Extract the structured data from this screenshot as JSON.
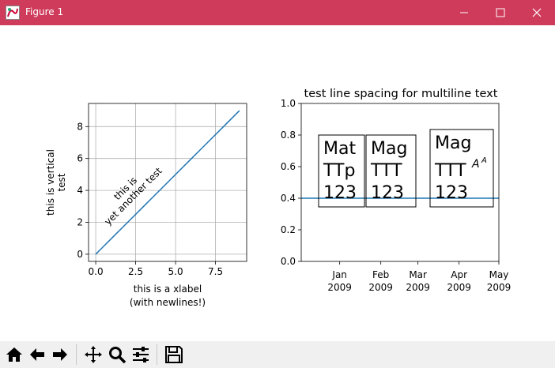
{
  "window": {
    "title": "Figure 1"
  },
  "left_axes": {
    "ylabel_lines": [
      "this is vertical",
      "test"
    ],
    "xlabel_lines": [
      "this is a xlabel",
      "(with newlines!)"
    ],
    "annotation_lines": [
      "this is",
      "yet another test"
    ],
    "xtick_labels": [
      "0.0",
      "2.5",
      "5.0",
      "7.5"
    ],
    "ytick_labels": [
      "0",
      "2",
      "4",
      "6",
      "8"
    ]
  },
  "right_axes": {
    "title": "test line spacing for multiline text",
    "ytick_labels": [
      "0.0",
      "0.2",
      "0.4",
      "0.6",
      "0.8",
      "1.0"
    ],
    "xtick_labels": [
      {
        "month": "Jan",
        "year": "2009"
      },
      {
        "month": "Feb",
        "year": "2009"
      },
      {
        "month": "Mar",
        "year": "2009"
      },
      {
        "month": "Apr",
        "year": "2009"
      },
      {
        "month": "May",
        "year": "2009"
      }
    ],
    "box_texts": [
      [
        "Mat",
        "TTp",
        "123"
      ],
      [
        "Mag",
        "TTT",
        "123"
      ],
      [
        "Mag",
        "TTT",
        "123"
      ]
    ],
    "superscript": "A",
    "superscript_sub": "A"
  },
  "chart_data": [
    {
      "type": "line",
      "title": "",
      "xlabel": "this is a xlabel\n(with newlines!)",
      "ylabel": "this is vertical\ntest",
      "x": [
        0,
        1,
        2,
        3,
        4,
        5,
        6,
        7,
        8,
        9
      ],
      "series": [
        {
          "values": [
            0,
            1,
            2,
            3,
            4,
            5,
            6,
            7,
            8,
            9
          ]
        }
      ],
      "xlim": [
        -0.45,
        9.45
      ],
      "ylim": [
        -0.45,
        9.45
      ],
      "grid": true,
      "color": "#1f77b4"
    },
    {
      "type": "line",
      "title": "test line spacing for multiline text",
      "x": [
        "2008-12-03",
        "2009-05-01"
      ],
      "series": [
        {
          "values": [
            0.4,
            0.4
          ]
        }
      ],
      "xlim": [
        "2008-12-03",
        "2009-05-01"
      ],
      "ylim": [
        0,
        1
      ],
      "grid": false,
      "color": "#1f77b4"
    }
  ],
  "toolbar": {
    "icons": [
      "home-icon",
      "back-arrow-icon",
      "forward-arrow-icon",
      "pan-icon",
      "zoom-icon",
      "configure-subplots-icon",
      "save-icon"
    ]
  }
}
